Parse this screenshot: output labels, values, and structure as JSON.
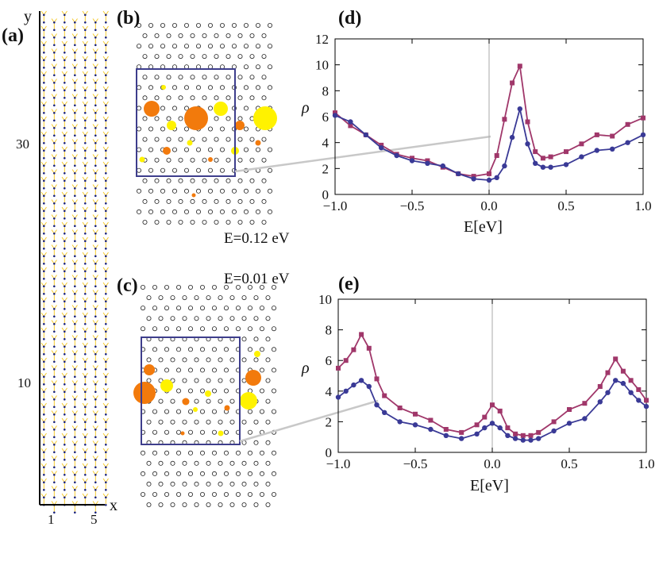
{
  "panels": {
    "a": "(a)",
    "b": "(b)",
    "c": "(c)",
    "d": "(d)",
    "e": "(e)"
  },
  "colors": {
    "upper_series": "#a0376a",
    "lower_series": "#3a3a96",
    "box": "#3e3e8c",
    "orange": "#f27a0c",
    "yellow": "#fff200",
    "lattice": "#f5c518",
    "connector": "#c8c8c8"
  },
  "chart_data": [
    {
      "id": "lattice",
      "type": "diagram",
      "xlabel": "x",
      "ylabel": "y",
      "x_ticks": [
        "1",
        "5"
      ],
      "y_ticks": [
        "30",
        "10"
      ]
    },
    {
      "id": "map_b",
      "type": "scatter",
      "energy_label": "E=0.12 eV"
    },
    {
      "id": "map_c",
      "type": "scatter",
      "energy_label": "E=0.01 eV"
    },
    {
      "id": "plot_d",
      "type": "line",
      "xlabel": "E[eV]",
      "ylabel": "ρ",
      "xlim": [
        -1.0,
        1.0
      ],
      "ylim": [
        0,
        12
      ],
      "x_ticks": [
        "−1.0",
        "−0.5",
        "0.0",
        "0.5",
        "1.0"
      ],
      "y_ticks": [
        "0",
        "2",
        "4",
        "6",
        "8",
        "10",
        "12"
      ],
      "x_tick_values": [
        -1.0,
        -0.5,
        0.0,
        0.5,
        1.0
      ],
      "y_tick_values": [
        0,
        2,
        4,
        6,
        8,
        10,
        12
      ],
      "series": [
        {
          "x": [
            -1.0,
            -0.9,
            -0.8,
            -0.7,
            -0.6,
            -0.5,
            -0.4,
            -0.3,
            -0.2,
            -0.1,
            0.0,
            0.05,
            0.1,
            0.15,
            0.2,
            0.25,
            0.3,
            0.35,
            0.4,
            0.5,
            0.6,
            0.7,
            0.8,
            0.9,
            1.0
          ],
          "values": [
            6.3,
            5.3,
            4.6,
            3.8,
            3.1,
            2.8,
            2.6,
            2.1,
            1.6,
            1.4,
            1.6,
            3.0,
            5.8,
            8.6,
            9.9,
            5.6,
            3.3,
            2.8,
            2.9,
            3.3,
            3.9,
            4.6,
            4.5,
            5.4,
            5.9
          ],
          "color_ref": "upper_series",
          "marker": "square"
        },
        {
          "x": [
            -1.0,
            -0.9,
            -0.8,
            -0.7,
            -0.6,
            -0.5,
            -0.4,
            -0.3,
            -0.2,
            -0.1,
            0.0,
            0.05,
            0.1,
            0.15,
            0.2,
            0.25,
            0.3,
            0.35,
            0.4,
            0.5,
            0.6,
            0.7,
            0.8,
            0.9,
            1.0
          ],
          "values": [
            6.1,
            5.6,
            4.6,
            3.6,
            3.0,
            2.6,
            2.4,
            2.2,
            1.6,
            1.2,
            1.1,
            1.3,
            2.2,
            4.4,
            6.6,
            3.9,
            2.4,
            2.1,
            2.1,
            2.3,
            2.9,
            3.4,
            3.5,
            4.0,
            4.6
          ],
          "color_ref": "lower_series",
          "marker": "circle"
        }
      ]
    },
    {
      "id": "plot_e",
      "type": "line",
      "xlabel": "E[eV]",
      "ylabel": "ρ",
      "xlim": [
        -1.0,
        1.0
      ],
      "ylim": [
        0,
        10
      ],
      "x_ticks": [
        "−1.0",
        "−0.5",
        "0.0",
        "0.5",
        "1.0"
      ],
      "y_ticks": [
        "0",
        "2",
        "4",
        "6",
        "8",
        "10"
      ],
      "x_tick_values": [
        -1.0,
        -0.5,
        0.0,
        0.5,
        1.0
      ],
      "y_tick_values": [
        0,
        2,
        4,
        6,
        8,
        10
      ],
      "series": [
        {
          "x": [
            -1.0,
            -0.95,
            -0.9,
            -0.85,
            -0.8,
            -0.75,
            -0.7,
            -0.6,
            -0.5,
            -0.4,
            -0.3,
            -0.2,
            -0.1,
            -0.05,
            0.0,
            0.05,
            0.1,
            0.15,
            0.2,
            0.25,
            0.3,
            0.4,
            0.5,
            0.6,
            0.7,
            0.75,
            0.8,
            0.85,
            0.9,
            0.95,
            1.0
          ],
          "values": [
            5.5,
            6.0,
            6.7,
            7.7,
            6.8,
            4.8,
            3.7,
            2.9,
            2.5,
            2.1,
            1.5,
            1.3,
            1.8,
            2.3,
            3.1,
            2.7,
            1.6,
            1.2,
            1.1,
            1.1,
            1.3,
            2.0,
            2.8,
            3.2,
            4.3,
            5.2,
            6.1,
            5.3,
            4.7,
            4.1,
            3.4
          ],
          "color_ref": "upper_series",
          "marker": "square"
        },
        {
          "x": [
            -1.0,
            -0.95,
            -0.9,
            -0.85,
            -0.8,
            -0.75,
            -0.7,
            -0.6,
            -0.5,
            -0.4,
            -0.3,
            -0.2,
            -0.1,
            -0.05,
            0.0,
            0.05,
            0.1,
            0.15,
            0.2,
            0.25,
            0.3,
            0.4,
            0.5,
            0.6,
            0.7,
            0.75,
            0.8,
            0.85,
            0.9,
            0.95,
            1.0
          ],
          "values": [
            3.6,
            4.0,
            4.4,
            4.7,
            4.3,
            3.1,
            2.6,
            2.0,
            1.8,
            1.5,
            1.1,
            0.9,
            1.2,
            1.6,
            1.9,
            1.6,
            1.1,
            0.9,
            0.8,
            0.8,
            0.9,
            1.4,
            1.9,
            2.2,
            3.3,
            3.9,
            4.7,
            4.5,
            3.9,
            3.4,
            3.0
          ],
          "color_ref": "lower_series",
          "marker": "circle"
        }
      ]
    }
  ]
}
